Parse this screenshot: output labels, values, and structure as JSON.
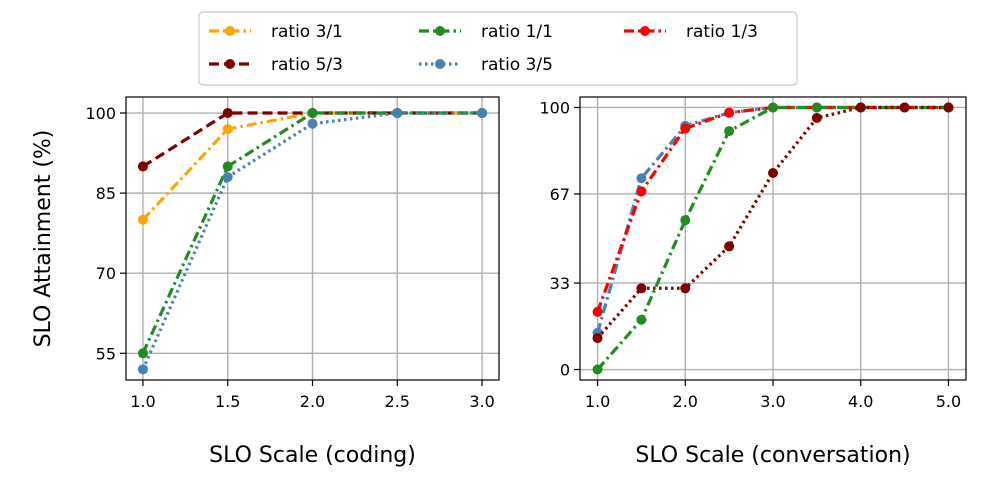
{
  "chart_data": [
    {
      "type": "line",
      "xlabel": "SLO Scale (coding)",
      "ylabel": "SLO Attainment (%)",
      "xlim": [
        0.9,
        3.1
      ],
      "ylim": [
        50,
        103
      ],
      "xticks": [
        1.0,
        1.5,
        2.0,
        2.5,
        3.0
      ],
      "xtick_labels": [
        "1.0",
        "1.5",
        "2.0",
        "2.5",
        "3.0"
      ],
      "yticks": [
        55,
        70,
        85,
        100
      ],
      "ytick_labels": [
        "55",
        "70",
        "85",
        "100"
      ],
      "grid": true,
      "series": [
        {
          "name": "ratio 3/1",
          "color": "#FFA500",
          "style": "dashdot",
          "x": [
            1.0,
            1.5,
            2.0,
            2.5,
            3.0
          ],
          "y": [
            80,
            97,
            100,
            100,
            100
          ]
        },
        {
          "name": "ratio 5/3",
          "color": "#800000",
          "style": "dashed",
          "x": [
            1.0,
            1.5,
            2.0,
            2.5,
            3.0
          ],
          "y": [
            90,
            100,
            100,
            100,
            100
          ]
        },
        {
          "name": "ratio 1/1",
          "color": "#228B22",
          "style": "dashdot",
          "x": [
            1.0,
            1.5,
            2.0,
            2.5,
            3.0
          ],
          "y": [
            55,
            90,
            100,
            100,
            100
          ]
        },
        {
          "name": "ratio 3/5",
          "color": "#4682B4",
          "style": "dotted",
          "x": [
            1.0,
            1.5,
            2.0,
            2.5,
            3.0
          ],
          "y": [
            52,
            88,
            98,
            100,
            100
          ]
        }
      ]
    },
    {
      "type": "line",
      "xlabel": "SLO Scale (conversation)",
      "ylabel": "",
      "xlim": [
        0.8,
        5.2
      ],
      "ylim": [
        -4,
        104
      ],
      "xticks": [
        1.0,
        2.0,
        3.0,
        4.0,
        5.0
      ],
      "xtick_labels": [
        "1.0",
        "2.0",
        "3.0",
        "4.0",
        "5.0"
      ],
      "yticks": [
        0,
        33,
        67,
        100
      ],
      "ytick_labels": [
        "0",
        "33",
        "67",
        "100"
      ],
      "grid": true,
      "series": [
        {
          "name": "ratio 3/5",
          "color": "#4682B4",
          "style": "dashdot",
          "x": [
            1.0,
            1.5,
            2.0,
            2.5,
            3.0,
            3.5,
            4.0,
            4.5,
            5.0
          ],
          "y": [
            14,
            73,
            93,
            98,
            100,
            100,
            100,
            100,
            100
          ]
        },
        {
          "name": "ratio 1/3",
          "color": "#FF0000",
          "style": "dashdot",
          "x": [
            1.0,
            1.5,
            2.0,
            2.5,
            3.0,
            3.5,
            4.0,
            4.5,
            5.0
          ],
          "y": [
            22,
            68,
            92,
            98,
            100,
            100,
            100,
            100,
            100
          ]
        },
        {
          "name": "ratio 1/1",
          "color": "#228B22",
          "style": "dashdot",
          "x": [
            1.0,
            1.5,
            2.0,
            2.5,
            3.0,
            3.5,
            4.0,
            4.5,
            5.0
          ],
          "y": [
            0,
            19,
            57,
            91,
            100,
            100,
            100,
            100,
            100
          ]
        },
        {
          "name": "ratio 5/3",
          "color": "#800000",
          "style": "dotted",
          "x": [
            1.0,
            1.5,
            2.0,
            2.5,
            3.0,
            3.5,
            4.0,
            4.5,
            5.0
          ],
          "y": [
            12,
            31,
            31,
            47,
            75,
            96,
            100,
            100,
            100
          ]
        }
      ]
    }
  ],
  "legend": {
    "placement": "top-center",
    "entries": [
      {
        "label": "ratio 3/1",
        "color": "#FFA500",
        "style": "dashdot"
      },
      {
        "label": "ratio 5/3",
        "color": "#800000",
        "style": "dashed"
      },
      {
        "label": "ratio 1/1",
        "color": "#228B22",
        "style": "dashdot"
      },
      {
        "label": "ratio 3/5",
        "color": "#4682B4",
        "style": "dotted"
      },
      {
        "label": "ratio 1/3",
        "color": "#FF0000",
        "style": "dashdot"
      }
    ]
  }
}
